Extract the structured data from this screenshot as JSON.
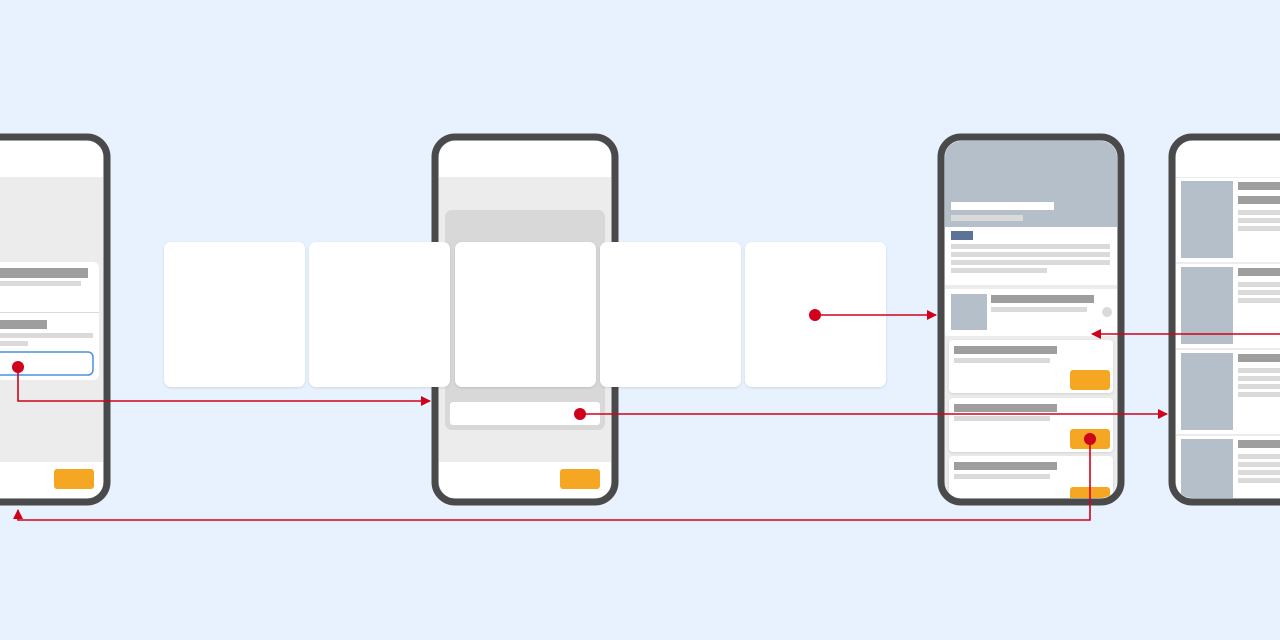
{
  "diagram": {
    "title": "",
    "screens": [
      {
        "id": "screen-1",
        "kind": "form-screen"
      },
      {
        "id": "screen-2",
        "kind": "carousel-screen"
      },
      {
        "id": "screen-3",
        "kind": "detail-screen"
      },
      {
        "id": "screen-4",
        "kind": "list-screen"
      }
    ],
    "carousel": {
      "card_count": 5
    },
    "connectors": [
      {
        "id": "flow-form-to-carousel",
        "from": "screen-1",
        "to": "screen-2"
      },
      {
        "id": "flow-carousel-card-to-detail",
        "from": "screen-2",
        "to": "screen-3"
      },
      {
        "id": "flow-carousel-field-to-list",
        "from": "screen-2",
        "to": "screen-4"
      },
      {
        "id": "flow-list-to-detail",
        "from": "screen-4",
        "to": "screen-3"
      },
      {
        "id": "flow-detail-back-to-form",
        "from": "screen-3",
        "to": "screen-1"
      }
    ]
  },
  "colors": {
    "background": "#e8f2fe",
    "phone_frame": "#4a4a4a",
    "screen_white": "#ffffff",
    "screen_gray": "#ececec",
    "panel_gray": "#d8d8d8",
    "bar_dark": "#9e9e9e",
    "bar_light": "#dadada",
    "image_placeholder": "#b4bfca",
    "tag_blue": "#5b7396",
    "input_border": "#4a90e2",
    "cta_orange": "#f5a623",
    "connector_red": "#d0021b"
  }
}
